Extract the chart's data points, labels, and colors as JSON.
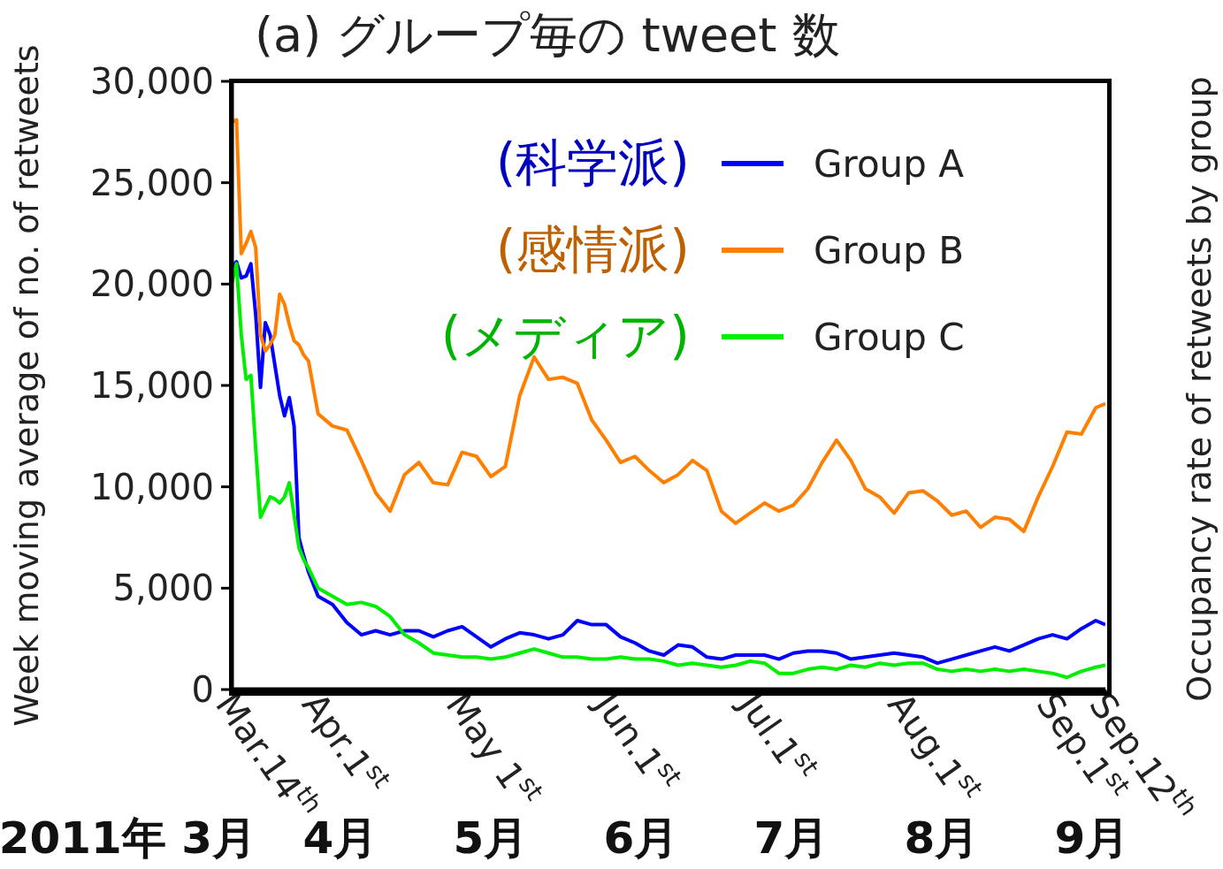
{
  "chart_data": {
    "type": "line",
    "title": "(a) グループ毎の tweet 数",
    "ylabel": "Week moving average of no. of retweets",
    "x": [
      "2011-03-14",
      "2011-03-15",
      "2011-03-16",
      "2011-03-17",
      "2011-03-18",
      "2011-03-19",
      "2011-03-20",
      "2011-03-21",
      "2011-03-22",
      "2011-03-23",
      "2011-03-24",
      "2011-03-25",
      "2011-03-26",
      "2011-03-27",
      "2011-03-28",
      "2011-03-29",
      "2011-03-30",
      "2011-04-01",
      "2011-04-04",
      "2011-04-07",
      "2011-04-10",
      "2011-04-13",
      "2011-04-16",
      "2011-04-19",
      "2011-04-22",
      "2011-04-25",
      "2011-04-28",
      "2011-05-01",
      "2011-05-04",
      "2011-05-07",
      "2011-05-10",
      "2011-05-13",
      "2011-05-16",
      "2011-05-19",
      "2011-05-22",
      "2011-05-25",
      "2011-05-28",
      "2011-05-31",
      "2011-06-03",
      "2011-06-06",
      "2011-06-09",
      "2011-06-12",
      "2011-06-15",
      "2011-06-18",
      "2011-06-21",
      "2011-06-24",
      "2011-06-27",
      "2011-06-30",
      "2011-07-03",
      "2011-07-06",
      "2011-07-09",
      "2011-07-12",
      "2011-07-15",
      "2011-07-18",
      "2011-07-21",
      "2011-07-24",
      "2011-07-27",
      "2011-07-30",
      "2011-08-02",
      "2011-08-05",
      "2011-08-08",
      "2011-08-11",
      "2011-08-14",
      "2011-08-17",
      "2011-08-20",
      "2011-08-23",
      "2011-08-26",
      "2011-08-29",
      "2011-09-01",
      "2011-09-04",
      "2011-09-07",
      "2011-09-10",
      "2011-09-12"
    ],
    "series": [
      {
        "name": "Group A",
        "color": "#0000ff",
        "values": [
          20800,
          21100,
          20300,
          20400,
          21000,
          18500,
          14900,
          18100,
          17500,
          16000,
          14500,
          13500,
          14400,
          13000,
          7500,
          6600,
          5800,
          4600,
          4200,
          3300,
          2700,
          2900,
          2700,
          2900,
          2900,
          2600,
          2900,
          3100,
          2600,
          2100,
          2500,
          2800,
          2700,
          2500,
          2700,
          3400,
          3200,
          3200,
          2600,
          2300,
          1900,
          1700,
          2200,
          2100,
          1600,
          1500,
          1700,
          1700,
          1700,
          1500,
          1800,
          1900,
          1900,
          1800,
          1500,
          1600,
          1700,
          1800,
          1700,
          1600,
          1300,
          1500,
          1700,
          1900,
          2100,
          1900,
          2200,
          2500,
          2700,
          2500,
          3000,
          3400,
          3200
        ]
      },
      {
        "name": "Group B",
        "color": "#ff8000",
        "values": [
          28000,
          28100,
          21500,
          22000,
          22600,
          21800,
          17500,
          16700,
          17000,
          17500,
          19500,
          19000,
          18000,
          17200,
          17000,
          16500,
          16200,
          13600,
          13000,
          12800,
          11300,
          9700,
          8800,
          10600,
          11200,
          10200,
          10100,
          11700,
          11500,
          10500,
          11000,
          14500,
          16400,
          15300,
          15400,
          15100,
          13300,
          12300,
          11200,
          11500,
          10800,
          10200,
          10600,
          11300,
          10800,
          8800,
          8200,
          8700,
          9200,
          8800,
          9100,
          9900,
          11200,
          12300,
          11300,
          9900,
          9500,
          8700,
          9700,
          9800,
          9300,
          8600,
          8800,
          8000,
          8500,
          8400,
          7800,
          9500,
          11000,
          12700,
          12600,
          13900,
          14100
        ]
      },
      {
        "name": "Group C",
        "color": "#00ee00",
        "values": [
          20000,
          21000,
          17500,
          15300,
          15500,
          11900,
          8500,
          9000,
          9500,
          9400,
          9200,
          9500,
          10200,
          8600,
          7000,
          6400,
          6000,
          5000,
          4600,
          4200,
          4300,
          4100,
          3600,
          2700,
          2300,
          1800,
          1700,
          1600,
          1600,
          1500,
          1600,
          1800,
          2000,
          1800,
          1600,
          1600,
          1500,
          1500,
          1600,
          1500,
          1500,
          1400,
          1200,
          1300,
          1200,
          1100,
          1200,
          1400,
          1300,
          800,
          800,
          1000,
          1100,
          1000,
          1200,
          1100,
          1300,
          1200,
          1300,
          1300,
          1000,
          900,
          1000,
          900,
          1000,
          900,
          1000,
          900,
          800,
          600,
          900,
          1100,
          1200
        ]
      }
    ],
    "xlim": [
      "2011-03-14",
      "2011-09-12"
    ],
    "xticks": [
      {
        "value": "2011-03-14",
        "label": "Mar.14$^{th}$"
      },
      {
        "value": "2011-04-01",
        "label": "Apr.1$^{st}$"
      },
      {
        "value": "2011-05-01",
        "label": "May 1$^{st}$"
      },
      {
        "value": "2011-06-01",
        "label": "Jun.1$^{st}$"
      },
      {
        "value": "2011-07-01",
        "label": "Jul.1$^{st}$"
      },
      {
        "value": "2011-08-01",
        "label": "Aug.1$^{st}$"
      },
      {
        "value": "2011-09-01",
        "label": "Sep.1$^{st}$"
      },
      {
        "value": "2011-09-12",
        "label": "Sep.12$^{th}$"
      }
    ],
    "ylim": [
      0,
      30000
    ],
    "yticks": [
      0,
      {
        "value": 5000,
        "label": "5,000"
      },
      {
        "value": 10000,
        "label": "10,000"
      },
      {
        "value": 15000,
        "label": "15,000"
      },
      {
        "value": 20000,
        "label": "20,000"
      },
      {
        "value": 25000,
        "label": "25,000"
      },
      {
        "value": 30000,
        "label": "30,000"
      }
    ],
    "legend": "top right",
    "marker": "none",
    "line_style": "solid",
    "annotations": [
      "(科学派)",
      "(感情派)",
      "(メディア)",
      "2011年 3月",
      "4月",
      "5月",
      "6月",
      "7月",
      "8月",
      "9月",
      "Occupancy rate of retweets by group"
    ]
  }
}
